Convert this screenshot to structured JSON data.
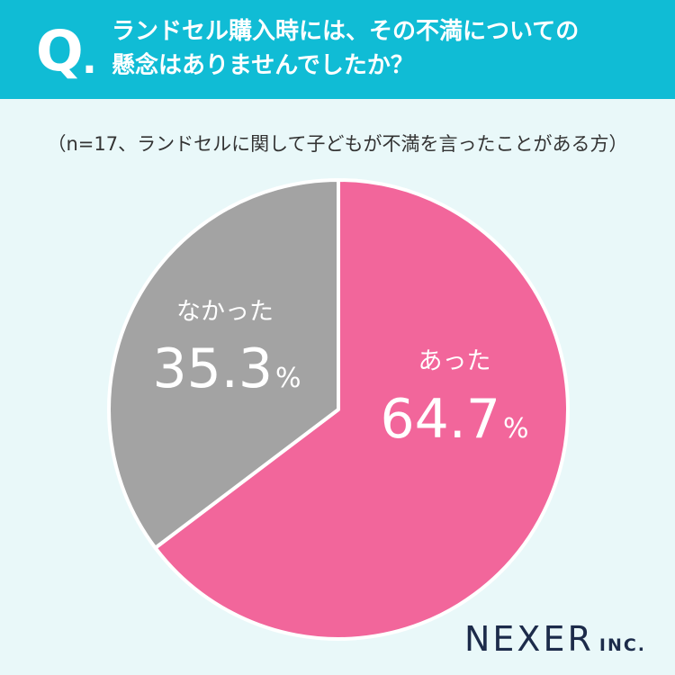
{
  "header": {
    "q_mark": "Q",
    "q_dot": ".",
    "question": "ランドセル購入時には、その不満についての\n懸念はありませんでしたか？"
  },
  "chart_data": {
    "type": "pie",
    "subtitle": "（n=17、ランドセルに関して子どもが不満を言ったことがある方）",
    "slices": [
      {
        "label": "あった",
        "value": 64.7,
        "display": "64.7",
        "unit": "%",
        "color": "#f2669b"
      },
      {
        "label": "なかった",
        "value": 35.3,
        "display": "35.3",
        "unit": "%",
        "color": "#a3a3a3"
      }
    ],
    "start": "top",
    "direction": "clockwise"
  },
  "logo": {
    "main": "NEXER",
    "suffix": "INC."
  }
}
